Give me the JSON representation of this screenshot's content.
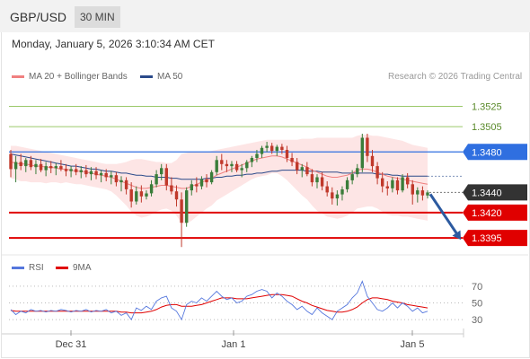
{
  "header": {
    "pair": "GBP/USD",
    "timeframe": "30 MIN",
    "datetime": "Monday, January 5, 2026 3:10:34 AM CET"
  },
  "legend": {
    "ma20": "MA 20 + Bollinger Bands",
    "ma50": "MA 50",
    "credit": "Research © 2026 Trading Central",
    "rsi": "RSI",
    "ma9": "9MA"
  },
  "colors": {
    "up": "#3a7d3a",
    "down": "#c0392b",
    "ma20": "#f08080",
    "ma50": "#2a4a8a",
    "band": "#fde5e5",
    "resistance": "#9bc96a",
    "pivot": "#2f6fe0",
    "support": "#e00000",
    "arrow": "#2c5aa0"
  },
  "chart_data": [
    {
      "type": "candlestick",
      "x_tick_labels": [
        "Dec 31",
        "Jan 1",
        "Jan 5"
      ],
      "ylim": [
        1.338,
        1.3545
      ],
      "levels": [
        {
          "value": 1.3525,
          "label": "1.3525",
          "kind": "resistance"
        },
        {
          "value": 1.3505,
          "label": "1.3505",
          "kind": "resistance"
        },
        {
          "value": 1.348,
          "label": "1.3480",
          "kind": "pivot"
        },
        {
          "value": 1.344,
          "label": "1.3440",
          "kind": "last"
        },
        {
          "value": 1.342,
          "label": "1.3420",
          "kind": "support"
        },
        {
          "value": 1.3395,
          "label": "1.3395",
          "kind": "support"
        }
      ],
      "ohlc": [
        [
          1.3478,
          1.3482,
          1.3455,
          1.3463
        ],
        [
          1.3463,
          1.3476,
          1.345,
          1.347
        ],
        [
          1.347,
          1.3478,
          1.3462,
          1.3466
        ],
        [
          1.3466,
          1.3474,
          1.346,
          1.3472
        ],
        [
          1.3472,
          1.3476,
          1.3462,
          1.3465
        ],
        [
          1.3465,
          1.3472,
          1.3458,
          1.3468
        ],
        [
          1.3468,
          1.3473,
          1.346,
          1.3462
        ],
        [
          1.3462,
          1.347,
          1.3456,
          1.3466
        ],
        [
          1.3466,
          1.3471,
          1.3459,
          1.3464
        ],
        [
          1.3464,
          1.3469,
          1.3457,
          1.3466
        ],
        [
          1.3466,
          1.3472,
          1.3461,
          1.3463
        ],
        [
          1.3463,
          1.3468,
          1.3456,
          1.3461
        ],
        [
          1.3461,
          1.3466,
          1.3455,
          1.3463
        ],
        [
          1.3463,
          1.3468,
          1.3457,
          1.346
        ],
        [
          1.346,
          1.3466,
          1.3454,
          1.3462
        ],
        [
          1.3462,
          1.3467,
          1.3455,
          1.3458
        ],
        [
          1.3458,
          1.3465,
          1.3452,
          1.3461
        ],
        [
          1.3461,
          1.3465,
          1.3453,
          1.3457
        ],
        [
          1.3457,
          1.3462,
          1.345,
          1.3459
        ],
        [
          1.3459,
          1.3463,
          1.3451,
          1.3455
        ],
        [
          1.3455,
          1.3461,
          1.3448,
          1.3457
        ],
        [
          1.3457,
          1.346,
          1.3446,
          1.345
        ],
        [
          1.345,
          1.3456,
          1.3441,
          1.3452
        ],
        [
          1.3452,
          1.3455,
          1.3438,
          1.3443
        ],
        [
          1.3443,
          1.345,
          1.3425,
          1.3431
        ],
        [
          1.3431,
          1.3446,
          1.3428,
          1.3441
        ],
        [
          1.3441,
          1.3447,
          1.343,
          1.3436
        ],
        [
          1.3436,
          1.3442,
          1.3433,
          1.3439
        ],
        [
          1.3439,
          1.3452,
          1.3436,
          1.3448
        ],
        [
          1.3448,
          1.3462,
          1.3445,
          1.3458
        ],
        [
          1.3458,
          1.3468,
          1.3452,
          1.3464
        ],
        [
          1.3464,
          1.3468,
          1.3442,
          1.3447
        ],
        [
          1.3447,
          1.3455,
          1.3438,
          1.3441
        ],
        [
          1.3441,
          1.3447,
          1.3426,
          1.3433
        ],
        [
          1.3433,
          1.344,
          1.3386,
          1.341
        ],
        [
          1.341,
          1.3445,
          1.3406,
          1.3442
        ],
        [
          1.3442,
          1.3452,
          1.3437,
          1.3448
        ],
        [
          1.3448,
          1.3455,
          1.344,
          1.3446
        ],
        [
          1.3446,
          1.3456,
          1.3443,
          1.3453
        ],
        [
          1.3453,
          1.3458,
          1.3445,
          1.345
        ],
        [
          1.345,
          1.3462,
          1.3448,
          1.346
        ],
        [
          1.346,
          1.3476,
          1.3457,
          1.3472
        ],
        [
          1.3472,
          1.3478,
          1.3462,
          1.3468
        ],
        [
          1.3468,
          1.3472,
          1.346,
          1.3466
        ],
        [
          1.3466,
          1.3471,
          1.346,
          1.3468
        ],
        [
          1.3468,
          1.3471,
          1.346,
          1.3462
        ],
        [
          1.3462,
          1.3468,
          1.3455,
          1.3464
        ],
        [
          1.3464,
          1.3472,
          1.346,
          1.347
        ],
        [
          1.347,
          1.3476,
          1.3465,
          1.3474
        ],
        [
          1.3474,
          1.3482,
          1.347,
          1.3478
        ],
        [
          1.3478,
          1.3486,
          1.3474,
          1.3484
        ],
        [
          1.3484,
          1.349,
          1.348,
          1.3486
        ],
        [
          1.3486,
          1.3489,
          1.3478,
          1.3481
        ],
        [
          1.3481,
          1.3487,
          1.3476,
          1.3485
        ],
        [
          1.3485,
          1.3488,
          1.3478,
          1.3482
        ],
        [
          1.3482,
          1.3486,
          1.347,
          1.3474
        ],
        [
          1.3474,
          1.3479,
          1.3466,
          1.347
        ],
        [
          1.347,
          1.3474,
          1.3458,
          1.3462
        ],
        [
          1.3462,
          1.3468,
          1.3455,
          1.3465
        ],
        [
          1.3465,
          1.347,
          1.3456,
          1.3458
        ],
        [
          1.3458,
          1.3463,
          1.3446,
          1.345
        ],
        [
          1.345,
          1.3458,
          1.3444,
          1.3455
        ],
        [
          1.3455,
          1.346,
          1.3442,
          1.3446
        ],
        [
          1.3446,
          1.3451,
          1.3436,
          1.344
        ],
        [
          1.344,
          1.3445,
          1.3428,
          1.3434
        ],
        [
          1.3434,
          1.3442,
          1.3427,
          1.3438
        ],
        [
          1.3438,
          1.3446,
          1.3432,
          1.3443
        ],
        [
          1.3443,
          1.3455,
          1.344,
          1.3452
        ],
        [
          1.3452,
          1.3462,
          1.3448,
          1.3458
        ],
        [
          1.3458,
          1.3468,
          1.3455,
          1.3464
        ],
        [
          1.3464,
          1.3498,
          1.346,
          1.3494
        ],
        [
          1.3494,
          1.3498,
          1.347,
          1.3476
        ],
        [
          1.3476,
          1.3482,
          1.346,
          1.3466
        ],
        [
          1.3466,
          1.347,
          1.3448,
          1.3454
        ],
        [
          1.3454,
          1.346,
          1.344,
          1.3446
        ],
        [
          1.3446,
          1.3451,
          1.3437,
          1.3444
        ],
        [
          1.3444,
          1.3455,
          1.344,
          1.3452
        ],
        [
          1.3452,
          1.3455,
          1.3438,
          1.3442
        ],
        [
          1.3442,
          1.3458,
          1.344,
          1.3455
        ],
        [
          1.3455,
          1.3459,
          1.3444,
          1.3448
        ],
        [
          1.3448,
          1.3452,
          1.3428,
          1.3438
        ],
        [
          1.3438,
          1.3445,
          1.343,
          1.3442
        ],
        [
          1.3442,
          1.3446,
          1.3432,
          1.3437
        ],
        [
          1.3437,
          1.3442,
          1.3434,
          1.344
        ]
      ],
      "ma20": [
        1.347,
        1.3469,
        1.3468,
        1.3468,
        1.3467,
        1.3466,
        1.3466,
        1.3465,
        1.3465,
        1.3464,
        1.3463,
        1.3463,
        1.3462,
        1.3461,
        1.3461,
        1.346,
        1.3459,
        1.3458,
        1.3457,
        1.3456,
        1.3455,
        1.3453,
        1.3451,
        1.3449,
        1.3447,
        1.3445,
        1.3444,
        1.3444,
        1.3445,
        1.3446,
        1.3447,
        1.3447,
        1.3446,
        1.3445,
        1.3444,
        1.3444,
        1.3446,
        1.3448,
        1.345,
        1.3452,
        1.3454,
        1.3457,
        1.3459,
        1.3461,
        1.3463,
        1.3465,
        1.3467,
        1.3469,
        1.3471,
        1.3473,
        1.3474,
        1.3475,
        1.3476,
        1.3476,
        1.3475,
        1.3473,
        1.3471,
        1.3469,
        1.3467,
        1.3465,
        1.3462,
        1.346,
        1.3458,
        1.3456,
        1.3455,
        1.3455,
        1.3456,
        1.3457,
        1.3459,
        1.3462,
        1.3463,
        1.3463,
        1.3462,
        1.346,
        1.3458,
        1.3456,
        1.3455,
        1.3454,
        1.3453,
        1.3452,
        1.3451,
        1.345,
        1.3449,
        1.3448
      ],
      "bb_upper": [
        1.3486,
        1.3486,
        1.3485,
        1.3484,
        1.3483,
        1.3482,
        1.3481,
        1.348,
        1.3479,
        1.3478,
        1.3477,
        1.3476,
        1.3475,
        1.3474,
        1.3473,
        1.3472,
        1.3471,
        1.347,
        1.3469,
        1.3468,
        1.3468,
        1.3468,
        1.3469,
        1.347,
        1.3472,
        1.3473,
        1.3473,
        1.3472,
        1.3471,
        1.347,
        1.347,
        1.3469,
        1.3469,
        1.3472,
        1.3478,
        1.3479,
        1.348,
        1.348,
        1.348,
        1.348,
        1.3481,
        1.3482,
        1.3483,
        1.3484,
        1.3485,
        1.3486,
        1.3487,
        1.3488,
        1.3489,
        1.349,
        1.3491,
        1.3492,
        1.3492,
        1.3492,
        1.3492,
        1.3492,
        1.3492,
        1.3492,
        1.3493,
        1.3493,
        1.3493,
        1.3494,
        1.3494,
        1.3494,
        1.3494,
        1.3494,
        1.3494,
        1.3494,
        1.3494,
        1.3496,
        1.3497,
        1.3497,
        1.3496,
        1.3496,
        1.3495,
        1.3494,
        1.3493,
        1.3492,
        1.3491,
        1.3489,
        1.3487,
        1.3486,
        1.3485,
        1.3484
      ],
      "bb_lower": [
        1.3454,
        1.3453,
        1.3451,
        1.3451,
        1.345,
        1.345,
        1.345,
        1.3449,
        1.345,
        1.345,
        1.3449,
        1.345,
        1.3449,
        1.3448,
        1.3448,
        1.3447,
        1.3446,
        1.3445,
        1.3444,
        1.3443,
        1.3441,
        1.3437,
        1.3432,
        1.3427,
        1.3421,
        1.3417,
        1.3415,
        1.3416,
        1.3418,
        1.3421,
        1.3423,
        1.3424,
        1.3422,
        1.3417,
        1.341,
        1.3409,
        1.3412,
        1.3416,
        1.342,
        1.3424,
        1.3427,
        1.3432,
        1.3435,
        1.3438,
        1.3441,
        1.3444,
        1.3447,
        1.345,
        1.3453,
        1.3455,
        1.3456,
        1.3457,
        1.3459,
        1.3459,
        1.3456,
        1.3452,
        1.3447,
        1.3442,
        1.3437,
        1.3433,
        1.3427,
        1.3422,
        1.3419,
        1.3416,
        1.3415,
        1.3414,
        1.3415,
        1.3417,
        1.342,
        1.3424,
        1.3425,
        1.3426,
        1.3426,
        1.3424,
        1.3421,
        1.3418,
        1.3417,
        1.3417,
        1.3416,
        1.3416,
        1.3415,
        1.3414,
        1.3413,
        1.3412
      ],
      "ma50": [
        1.3478,
        1.3477,
        1.3476,
        1.3475,
        1.3474,
        1.3473,
        1.3472,
        1.3471,
        1.347,
        1.3469,
        1.3468,
        1.3467,
        1.3466,
        1.3466,
        1.3465,
        1.3464,
        1.3463,
        1.3463,
        1.3462,
        1.3461,
        1.3461,
        1.346,
        1.3459,
        1.3459,
        1.3458,
        1.3457,
        1.3457,
        1.3456,
        1.3456,
        1.3455,
        1.3455,
        1.3455,
        1.3454,
        1.3454,
        1.3453,
        1.3453,
        1.3453,
        1.3453,
        1.3453,
        1.3454,
        1.3454,
        1.3455,
        1.3455,
        1.3456,
        1.3456,
        1.3457,
        1.3457,
        1.3458,
        1.3458,
        1.3459,
        1.3459,
        1.346,
        1.3461,
        1.3461,
        1.3462,
        1.3462,
        1.3462,
        1.3462,
        1.3462,
        1.3461,
        1.3461,
        1.3461,
        1.346,
        1.346,
        1.346,
        1.346,
        1.3459,
        1.3459,
        1.3459,
        1.3459,
        1.3459,
        1.3459,
        1.3459,
        1.3458,
        1.3458,
        1.3458,
        1.3457,
        1.3457,
        1.3456,
        1.3456,
        1.3456,
        1.3456,
        1.3456,
        1.3456
      ],
      "forecast_arrow": {
        "from": 1.344,
        "to": 1.3395
      }
    },
    {
      "type": "line",
      "title": "RSI",
      "ylim": [
        15,
        85
      ],
      "y_ticks": [
        70,
        50,
        30
      ],
      "series": [
        {
          "name": "RSI",
          "values": [
            42,
            36,
            40,
            38,
            42,
            40,
            41,
            39,
            41,
            40,
            42,
            41,
            39,
            41,
            40,
            42,
            39,
            41,
            40,
            42,
            38,
            40,
            35,
            38,
            30,
            44,
            41,
            46,
            42,
            52,
            56,
            58,
            44,
            40,
            30,
            48,
            52,
            50,
            56,
            52,
            58,
            64,
            58,
            54,
            56,
            50,
            52,
            58,
            60,
            64,
            66,
            64,
            56,
            62,
            58,
            52,
            48,
            42,
            46,
            40,
            36,
            44,
            38,
            34,
            30,
            40,
            44,
            48,
            56,
            62,
            76,
            58,
            50,
            42,
            40,
            44,
            50,
            44,
            50,
            46,
            40,
            44,
            38,
            40
          ]
        },
        {
          "name": "9MA",
          "values": [
            41,
            40,
            40,
            40,
            40,
            40,
            40,
            40,
            40,
            40,
            40,
            40,
            40,
            40,
            40,
            40,
            40,
            40,
            40,
            40,
            40,
            40,
            39,
            39,
            38,
            38,
            38,
            39,
            40,
            42,
            45,
            47,
            48,
            48,
            46,
            46,
            46,
            47,
            48,
            50,
            52,
            54,
            56,
            56,
            56,
            55,
            55,
            55,
            56,
            57,
            58,
            59,
            60,
            60,
            60,
            59,
            58,
            55,
            52,
            50,
            47,
            45,
            43,
            41,
            40,
            39,
            39,
            40,
            42,
            45,
            50,
            54,
            56,
            56,
            55,
            54,
            52,
            51,
            50,
            48,
            47,
            46,
            45,
            44
          ]
        }
      ]
    }
  ]
}
